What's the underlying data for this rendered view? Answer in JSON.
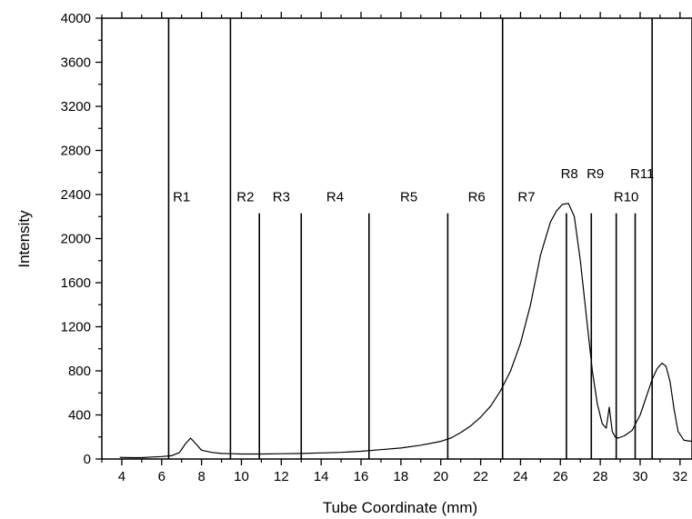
{
  "chart_data": {
    "type": "line",
    "title": "",
    "xlabel": "Tube Coordinate (mm)",
    "ylabel": "Intensity",
    "xlim": [
      3.0,
      32.6
    ],
    "ylim": [
      0,
      4000
    ],
    "xticks": [
      4,
      6,
      8,
      10,
      12,
      14,
      16,
      18,
      20,
      22,
      24,
      26,
      28,
      30,
      32
    ],
    "yticks": [
      0,
      400,
      800,
      1200,
      1600,
      2000,
      2400,
      2800,
      3200,
      3600,
      4000
    ],
    "grid": false,
    "series": [
      {
        "x": [
          3.9,
          4.5,
          5.0,
          5.5,
          6.0,
          6.5,
          6.9,
          7.2,
          7.45,
          7.7,
          8.0,
          8.5,
          9.0,
          9.5,
          10.0,
          11.0,
          12.0,
          13.0,
          14.0,
          15.0,
          16.0,
          17.0,
          18.0,
          19.0,
          20.0,
          20.5,
          21.0,
          21.5,
          22.0,
          22.5,
          23.0,
          23.5,
          24.0,
          24.5,
          25.0,
          25.5,
          25.8,
          26.1,
          26.4,
          26.7,
          27.0,
          27.3,
          27.6,
          27.85,
          28.1,
          28.3,
          28.45,
          28.6,
          28.75,
          28.9,
          29.2,
          29.6,
          30.0,
          30.3,
          30.6,
          30.85,
          31.1,
          31.3,
          31.5,
          31.7,
          31.9,
          32.2,
          32.6
        ],
        "y": [
          15,
          12,
          12,
          18,
          22,
          30,
          60,
          140,
          190,
          140,
          80,
          60,
          50,
          48,
          45,
          45,
          48,
          50,
          55,
          60,
          70,
          85,
          100,
          125,
          160,
          190,
          240,
          300,
          380,
          480,
          620,
          800,
          1050,
          1400,
          1850,
          2150,
          2250,
          2310,
          2320,
          2200,
          1800,
          1300,
          800,
          500,
          320,
          280,
          470,
          250,
          200,
          190,
          210,
          260,
          400,
          560,
          720,
          820,
          870,
          840,
          700,
          450,
          250,
          170,
          160
        ]
      }
    ],
    "markers": [
      {
        "x": 6.35,
        "top": 4000
      },
      {
        "x": 9.45,
        "top": 4000
      },
      {
        "x": 10.9,
        "top": 2230
      },
      {
        "x": 13.0,
        "top": 2230
      },
      {
        "x": 16.4,
        "top": 2230
      },
      {
        "x": 20.35,
        "top": 2230
      },
      {
        "x": 23.1,
        "top": 4000
      },
      {
        "x": 26.3,
        "top": 2230
      },
      {
        "x": 27.55,
        "top": 2230
      },
      {
        "x": 28.8,
        "top": 2230
      },
      {
        "x": 29.75,
        "top": 2230
      },
      {
        "x": 30.6,
        "top": 4000
      }
    ],
    "regions": [
      {
        "label": "R1",
        "x": 7.0,
        "y": 2340
      },
      {
        "label": "R2",
        "x": 10.2,
        "y": 2340
      },
      {
        "label": "R3",
        "x": 12.0,
        "y": 2340
      },
      {
        "label": "R4",
        "x": 14.7,
        "y": 2340
      },
      {
        "label": "R5",
        "x": 18.4,
        "y": 2340
      },
      {
        "label": "R6",
        "x": 21.8,
        "y": 2340
      },
      {
        "label": "R7",
        "x": 24.3,
        "y": 2340
      },
      {
        "label": "R8",
        "x": 26.45,
        "y": 2550
      },
      {
        "label": "R9",
        "x": 27.75,
        "y": 2550
      },
      {
        "label": "R10",
        "x": 29.3,
        "y": 2340
      },
      {
        "label": "R11",
        "x": 30.1,
        "y": 2550
      }
    ]
  }
}
